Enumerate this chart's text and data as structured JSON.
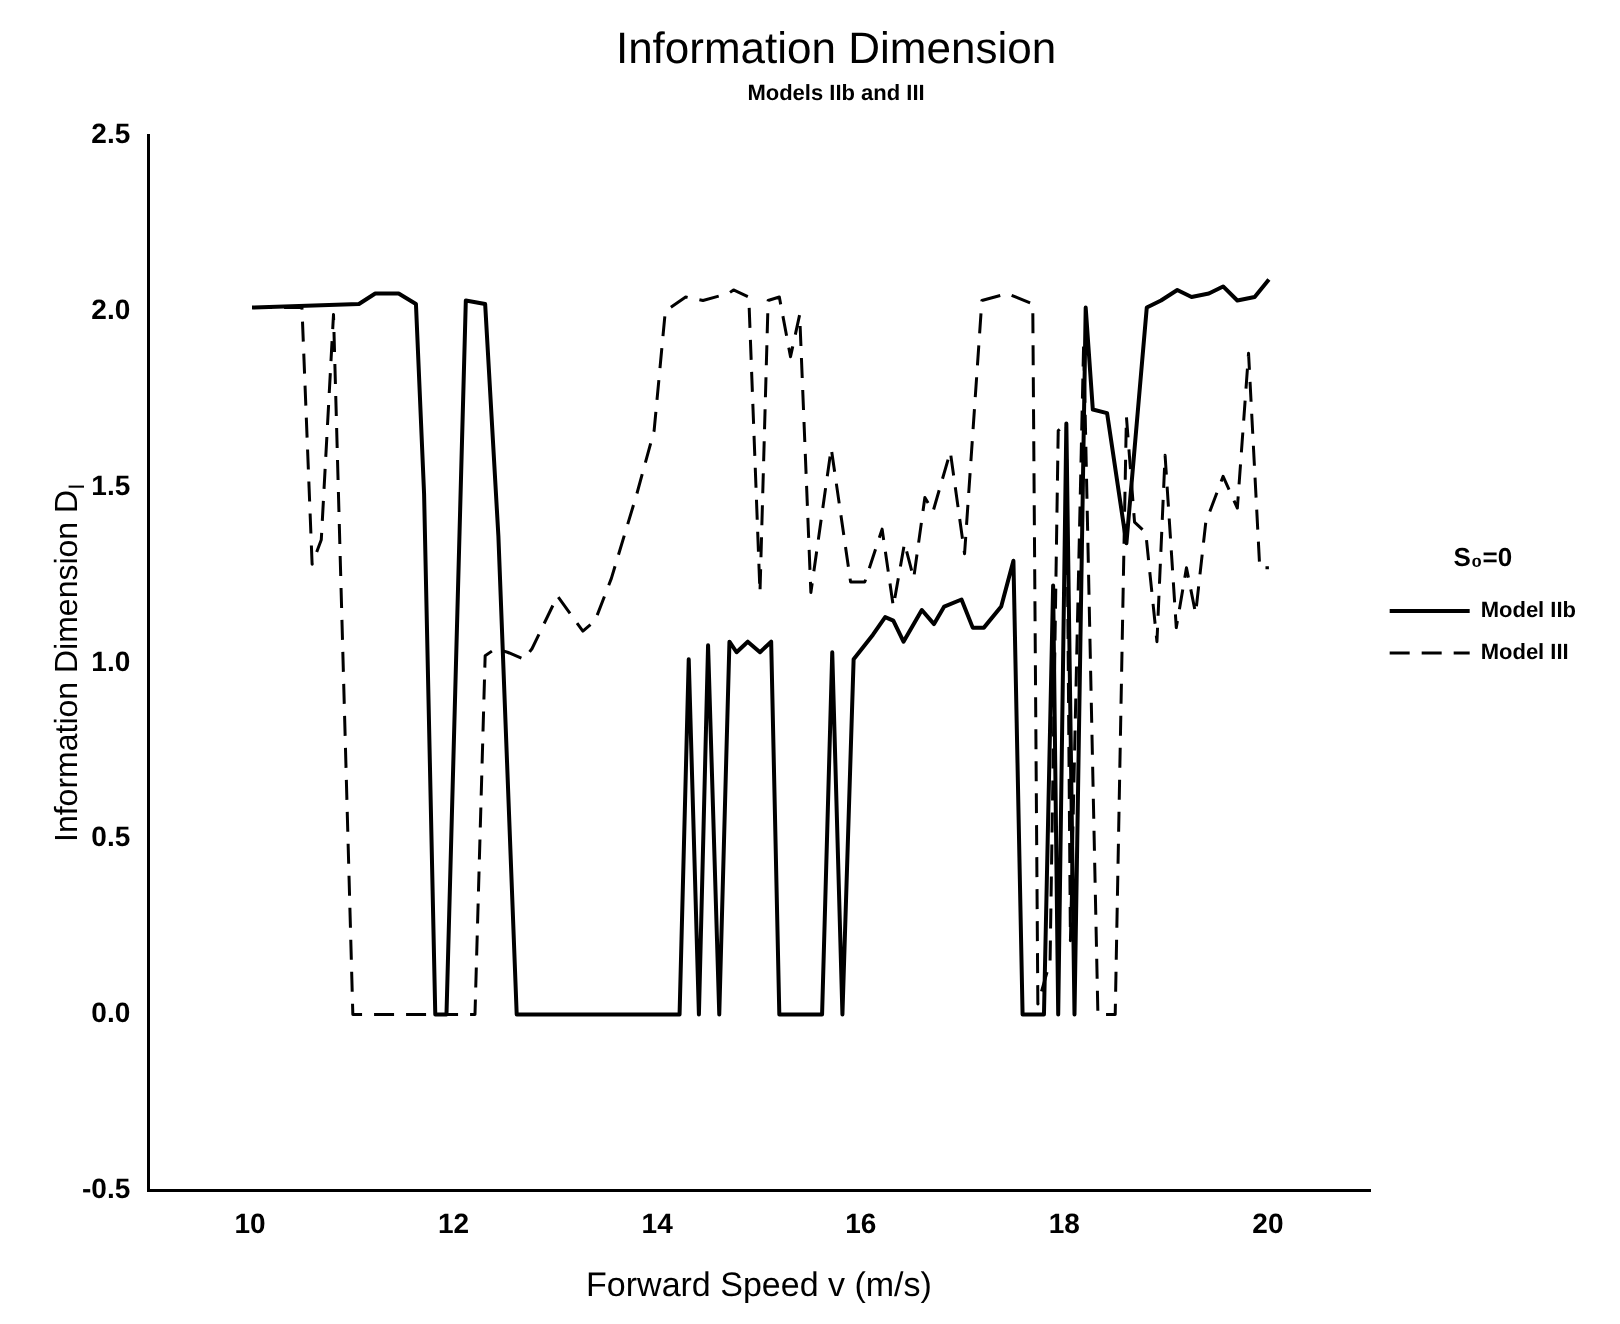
{
  "chart_data": {
    "type": "line",
    "title": "Information Dimension",
    "subtitle": "Models IIb and III",
    "xlabel": "Forward Speed v (m/s)",
    "ylabel": "Information Dimension D$_{I}$",
    "annotations": [
      "S₀=0"
    ],
    "xlim": [
      9,
      21
    ],
    "xticks": [
      10,
      12,
      14,
      16,
      18,
      20
    ],
    "ylim": [
      -0.5,
      2.5
    ],
    "yticks": [
      -0.5,
      {
        "value": 0,
        "label": "0.0"
      },
      0.5,
      {
        "value": 1,
        "label": "1.0"
      },
      1.5,
      {
        "value": 2,
        "label": "2.0"
      },
      2.5
    ],
    "grid": false,
    "legend": "right",
    "marker": "none",
    "series": [
      {
        "name": "Model IIb",
        "color": "#000000",
        "line_style": "solid",
        "x": [
          10.02,
          11.07,
          11.23,
          11.46,
          11.63,
          11.71,
          11.82,
          11.93,
          12.12,
          12.31,
          12.44,
          12.62,
          14.22,
          14.31,
          14.41,
          14.5,
          14.61,
          14.71,
          14.78,
          14.89,
          15.01,
          15.12,
          15.2,
          15.62,
          15.72,
          15.82,
          15.93,
          16.12,
          16.24,
          16.32,
          16.42,
          16.6,
          16.72,
          16.82,
          16.99,
          17.1,
          17.21,
          17.38,
          17.5,
          17.59,
          17.8,
          17.89,
          17.94,
          18.02,
          18.1,
          18.21,
          18.28,
          18.42,
          18.61,
          18.81,
          18.95,
          19.11,
          19.25,
          19.42,
          19.56,
          19.7,
          19.87,
          20.01
        ],
        "values": [
          2.01,
          2.02,
          2.05,
          2.05,
          2.02,
          1.48,
          0,
          0,
          2.03,
          2.02,
          1.36,
          0,
          0,
          1.01,
          0,
          1.05,
          0,
          1.06,
          1.03,
          1.06,
          1.03,
          1.06,
          0,
          0,
          1.03,
          0,
          1.01,
          1.08,
          1.13,
          1.12,
          1.06,
          1.15,
          1.11,
          1.16,
          1.18,
          1.1,
          1.1,
          1.16,
          1.29,
          0,
          0,
          1.22,
          0,
          1.68,
          0,
          2.01,
          1.72,
          1.71,
          1.34,
          2.01,
          2.03,
          2.06,
          2.04,
          2.05,
          2.07,
          2.03,
          2.04,
          2.09
        ]
      },
      {
        "name": "Model III",
        "color": "#000000",
        "line_style": "dashed",
        "x": [
          10.02,
          10.51,
          10.61,
          10.7,
          10.82,
          11.01,
          12.21,
          12.31,
          12.41,
          12.53,
          12.69,
          12.77,
          13.02,
          13.27,
          13.39,
          13.55,
          13.8,
          13.97,
          14.08,
          14.28,
          14.45,
          14.7,
          14.75,
          14.9,
          15.01,
          15.09,
          15.2,
          15.31,
          15.4,
          15.51,
          15.71,
          15.9,
          16.04,
          16.21,
          16.32,
          16.43,
          16.52,
          16.63,
          16.71,
          16.88,
          17.02,
          17.19,
          17.44,
          17.69,
          17.74,
          17.86,
          17.94,
          18.02,
          18.06,
          18.19,
          18.33,
          18.5,
          18.61,
          18.69,
          18.8,
          18.91,
          18.99,
          19.1,
          19.2,
          19.29,
          19.39,
          19.56,
          19.7,
          19.81,
          19.92,
          20.01
        ],
        "values": [
          2.01,
          2.01,
          1.28,
          1.35,
          1.99,
          0,
          0,
          1.02,
          1.04,
          1.03,
          1.01,
          1.04,
          1.19,
          1.09,
          1.12,
          1.24,
          1.48,
          1.66,
          2.0,
          2.04,
          2.03,
          2.05,
          2.06,
          2.04,
          1.2,
          2.03,
          2.04,
          1.87,
          1.99,
          1.2,
          1.61,
          1.23,
          1.23,
          1.38,
          1.16,
          1.34,
          1.24,
          1.47,
          1.43,
          1.6,
          1.31,
          2.03,
          2.05,
          2.02,
          0.03,
          0.15,
          1.66,
          1.68,
          0.21,
          1.91,
          0,
          0,
          1.7,
          1.4,
          1.37,
          1.06,
          1.59,
          1.1,
          1.27,
          1.14,
          1.4,
          1.53,
          1.44,
          1.88,
          1.27,
          1.27
        ]
      }
    ]
  }
}
